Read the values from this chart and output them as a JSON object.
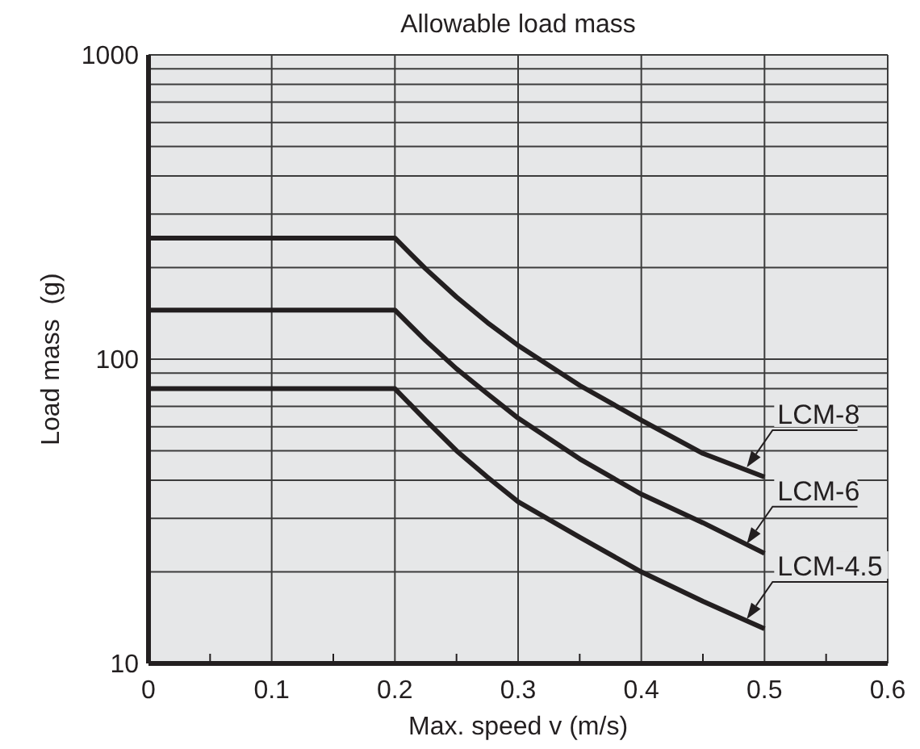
{
  "chart_data": {
    "type": "line",
    "title": "Allowable load mass",
    "xlabel": "Max. speed v (m/s)",
    "ylabel": "Load mass  (g)",
    "x": [
      0,
      0.2,
      0.225,
      0.25,
      0.275,
      0.3,
      0.35,
      0.4,
      0.45,
      0.5
    ],
    "series": [
      {
        "name": "LCM-8",
        "color": "#231f20",
        "values": [
          250,
          250,
          198,
          160,
          132,
          111,
          82,
          63,
          49,
          41
        ]
      },
      {
        "name": "LCM-6",
        "color": "#231f20",
        "values": [
          145,
          145,
          115,
          93,
          77,
          64,
          47,
          36,
          29,
          23
        ]
      },
      {
        "name": "LCM-4.5",
        "color": "#231f20",
        "values": [
          80,
          80,
          63,
          50,
          41,
          34,
          26,
          20,
          16,
          13
        ]
      }
    ],
    "xlim": [
      0,
      0.6
    ],
    "ylim": [
      10,
      1000
    ],
    "xticks": [
      0,
      {
        "value": 0.05,
        "label": null
      },
      0.1,
      {
        "value": 0.15,
        "label": null
      },
      0.2,
      {
        "value": 0.25,
        "label": null
      },
      0.3,
      {
        "value": 0.35,
        "label": null
      },
      0.4,
      {
        "value": 0.45,
        "label": null
      },
      0.5,
      {
        "value": 0.55,
        "label": null
      },
      0.6
    ],
    "yticks": [
      10,
      {
        "value": 20,
        "label": null
      },
      {
        "value": 30,
        "label": null
      },
      {
        "value": 40,
        "label": null
      },
      {
        "value": 50,
        "label": null
      },
      {
        "value": 60,
        "label": null
      },
      {
        "value": 70,
        "label": null
      },
      {
        "value": 80,
        "label": null
      },
      {
        "value": 90,
        "label": null
      },
      100,
      {
        "value": 200,
        "label": null
      },
      {
        "value": 300,
        "label": null
      },
      {
        "value": 400,
        "label": null
      },
      {
        "value": 500,
        "label": null
      },
      {
        "value": 600,
        "label": null
      },
      {
        "value": 700,
        "label": null
      },
      {
        "value": 800,
        "label": null
      },
      {
        "value": 900,
        "label": null
      },
      1000
    ],
    "log": "y",
    "grid": true,
    "legend": "right",
    "marker": "none",
    "line_style": "solid"
  }
}
